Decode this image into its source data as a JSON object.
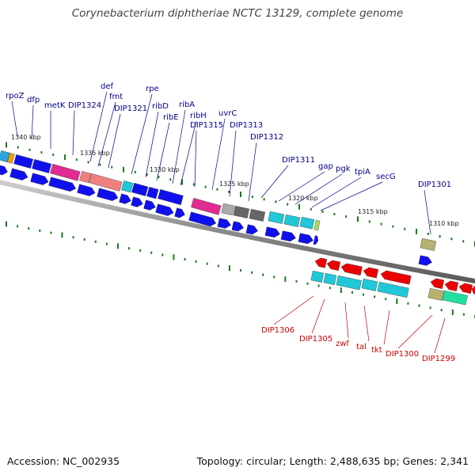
{
  "title": "Corynebacterium diphtheriae NCTC 13129, complete genome",
  "footer": {
    "accession": "Accession: NC_002935",
    "summary": "Topology: circular; Length: 2,488,635 bp; Genes: 2,341"
  },
  "colors": {
    "forward_label": "#00008b",
    "reverse_label": "#cc0000",
    "backbone": "#888888",
    "tick": "#1a7a1a"
  },
  "kbp_marks": [
    "1340 kbp",
    "1335 kbp",
    "1330 kbp",
    "1325 kbp",
    "1320 kbp",
    "1315 kbp",
    "1310 kbp"
  ],
  "forward_labels": [
    "rpoZ",
    "dfp",
    "metK",
    "DIP1324",
    "def",
    "fmt",
    "DIP1321",
    "rpe",
    "ribD",
    "ribE",
    "ribA",
    "ribH",
    "DIP1315",
    "uvrC",
    "DIP1313",
    "DIP1312",
    "DIP1311",
    "gap",
    "pgk",
    "tpiA",
    "secG",
    "DIP1301"
  ],
  "reverse_labels": [
    "DIP1306",
    "DIP1305",
    "zwf",
    "tal",
    "tkt",
    "DIP1300",
    "DIP1299"
  ]
}
